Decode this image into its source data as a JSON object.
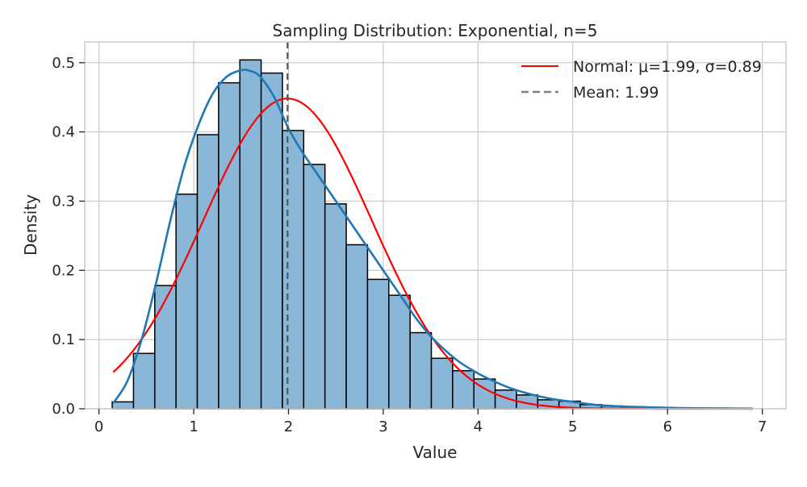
{
  "chart_data": {
    "type": "bar",
    "title": "Sampling Distribution: Exponential, n=5",
    "xlabel": "Value",
    "ylabel": "Density",
    "xlim": [
      -0.15,
      7.25
    ],
    "ylim": [
      0,
      0.53
    ],
    "xticks": [
      0,
      1,
      2,
      3,
      4,
      5,
      6,
      7
    ],
    "yticks": [
      0.0,
      0.1,
      0.2,
      0.3,
      0.4,
      0.5
    ],
    "grid": true,
    "legend_position": "top-right",
    "colors": {
      "bar_fill": "#8ab6d8",
      "bar_edge": "#000000",
      "kde": "#1f77b4",
      "normal": "#ff0000",
      "mean": "#808080",
      "grid": "#cccccc",
      "axes": "#cccccc"
    },
    "histogram": {
      "bin_start": 0.14,
      "bin_width": 0.2245,
      "densities": [
        0.01,
        0.08,
        0.178,
        0.31,
        0.396,
        0.471,
        0.504,
        0.485,
        0.402,
        0.353,
        0.296,
        0.237,
        0.187,
        0.164,
        0.11,
        0.073,
        0.055,
        0.043,
        0.027,
        0.02,
        0.013,
        0.011,
        0.006,
        0.004,
        0.003,
        0.002,
        0.001,
        0.001,
        0.001,
        0.0005
      ]
    },
    "series": [
      {
        "name": "Normal: μ=1.99, σ=0.89",
        "kind": "normal_pdf",
        "mu": 1.99,
        "sigma": 0.89,
        "x_range": [
          0.15,
          6.9
        ]
      },
      {
        "kind": "kde",
        "x": [
          0.15,
          0.3,
          0.45,
          0.6,
          0.75,
          0.9,
          1.05,
          1.2,
          1.35,
          1.5,
          1.6,
          1.7,
          1.85,
          2.0,
          2.15,
          2.3,
          2.45,
          2.6,
          2.75,
          2.9,
          3.05,
          3.2,
          3.35,
          3.5,
          3.65,
          3.8,
          3.95,
          4.1,
          4.3,
          4.5,
          4.75,
          5.0,
          5.3,
          5.6,
          6.0,
          6.4,
          6.9
        ],
        "y": [
          0.008,
          0.04,
          0.1,
          0.18,
          0.27,
          0.35,
          0.41,
          0.455,
          0.48,
          0.489,
          0.488,
          0.48,
          0.45,
          0.405,
          0.37,
          0.34,
          0.31,
          0.28,
          0.25,
          0.22,
          0.19,
          0.16,
          0.13,
          0.105,
          0.085,
          0.068,
          0.055,
          0.044,
          0.032,
          0.023,
          0.015,
          0.01,
          0.005,
          0.003,
          0.0015,
          0.0007,
          0.0002
        ]
      },
      {
        "name": "Mean: 1.99",
        "kind": "vline",
        "x": 1.99
      }
    ]
  }
}
